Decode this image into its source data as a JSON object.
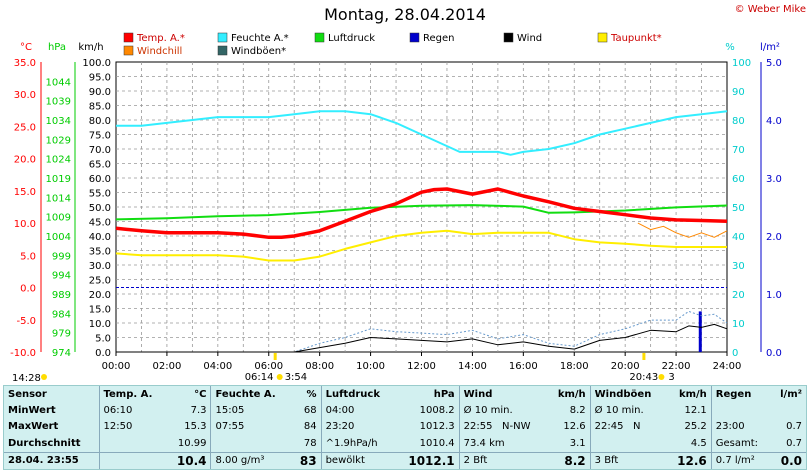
{
  "title": "Montag, 28.04.2014",
  "credit": "© Weber Mike",
  "chart_data": {
    "type": "line",
    "title": "Montag, 28.04.2014",
    "x_ticks": [
      "00:00",
      "02:00",
      "04:00",
      "06:00",
      "08:00",
      "10:00",
      "12:00",
      "14:00",
      "16:00",
      "18:00",
      "20:00",
      "22:00",
      "24:00"
    ],
    "axes": {
      "temp": {
        "unit": "°C",
        "min": -10,
        "max": 35,
        "ticks": [
          "35.0",
          "30.0",
          "25.0",
          "20.0",
          "15.0",
          "10.0",
          "5.0",
          "0.0",
          "-5.0",
          "-10.0"
        ],
        "color": "#ff0000"
      },
      "pressure": {
        "unit": "hPa",
        "min": 974,
        "max": 1049,
        "ticks": [
          "1044",
          "1039",
          "1034",
          "1029",
          "1024",
          "1019",
          "1014",
          "1009",
          "1004",
          "999",
          "994",
          "989",
          "984",
          "979",
          "974"
        ],
        "color": "#00cc00"
      },
      "wind": {
        "unit": "km/h",
        "min": 0,
        "max": 100,
        "ticks": [
          "100.0",
          "95.0",
          "90.0",
          "85.0",
          "80.0",
          "75.0",
          "70.0",
          "65.0",
          "60.0",
          "55.0",
          "50.0",
          "45.0",
          "40.0",
          "35.0",
          "30.0",
          "25.0",
          "20.0",
          "15.0",
          "10.0",
          "5.0",
          "0.0"
        ],
        "color": "#000000"
      },
      "humidity": {
        "unit": "%",
        "min": 0,
        "max": 100,
        "ticks": [
          "100",
          "90",
          "80",
          "70",
          "60",
          "50",
          "40",
          "30",
          "20",
          "10",
          "0"
        ],
        "color": "#00cccc"
      },
      "rain": {
        "unit": "l/m²",
        "min": 0,
        "max": 5,
        "ticks": [
          "5.0",
          "4.0",
          "3.0",
          "2.0",
          "1.0",
          "0.0"
        ],
        "color": "#0000cc"
      }
    },
    "legend": [
      {
        "label": "Temp. A.*",
        "color": "#ff0000"
      },
      {
        "label": "Feuchte A.*",
        "color": "#33eeff"
      },
      {
        "label": "Luftdruck",
        "color": "#11dd11"
      },
      {
        "label": "Regen",
        "color": "#0000cc"
      },
      {
        "label": "Wind",
        "color": "#000000"
      },
      {
        "label": "Taupunkt*",
        "color": "#ffee00"
      },
      {
        "label": "Windchill",
        "color": "#ff8800"
      },
      {
        "label": "Windböen*",
        "color": "#336666"
      }
    ],
    "series": [
      {
        "name": "Temp. A.",
        "axis": "temp",
        "color": "#ff0000",
        "width": 3.5,
        "x": [
          0,
          1,
          2,
          3,
          4,
          5,
          6,
          6.5,
          7,
          8,
          9,
          10,
          11,
          12,
          12.5,
          13,
          14,
          15,
          16,
          17,
          18,
          19,
          20,
          21,
          22,
          23,
          24
        ],
        "values": [
          9.2,
          8.8,
          8.5,
          8.5,
          8.5,
          8.3,
          7.8,
          7.8,
          8.0,
          8.8,
          10.3,
          11.8,
          13.0,
          14.8,
          15.2,
          15.3,
          14.5,
          15.3,
          14.2,
          13.3,
          12.3,
          11.8,
          11.3,
          10.8,
          10.5,
          10.4,
          10.3
        ]
      },
      {
        "name": "Feuchte A.",
        "axis": "humidity",
        "color": "#33eeff",
        "width": 2,
        "x": [
          0,
          1,
          2,
          3,
          4,
          5,
          6,
          7,
          8,
          9,
          10,
          11,
          12,
          13,
          13.5,
          14,
          15,
          15.5,
          16,
          17,
          18,
          19,
          20,
          21,
          22,
          23,
          24
        ],
        "values": [
          78,
          78,
          79,
          80,
          81,
          81,
          81,
          82,
          83,
          83,
          82,
          79,
          75,
          71,
          69,
          69,
          69,
          68,
          69,
          70,
          72,
          75,
          77,
          79,
          81,
          82,
          83
        ]
      },
      {
        "name": "Luftdruck",
        "axis": "pressure",
        "color": "#11dd11",
        "width": 2,
        "x": [
          0,
          2,
          4,
          6,
          8,
          10,
          12,
          14,
          16,
          17,
          18,
          20,
          22,
          24
        ],
        "values": [
          1008.3,
          1008.6,
          1009.1,
          1009.4,
          1010.2,
          1011.3,
          1011.8,
          1012.0,
          1011.6,
          1010.0,
          1010.1,
          1010.6,
          1011.4,
          1011.9
        ]
      },
      {
        "name": "Taupunkt",
        "axis": "temp",
        "color": "#ffee00",
        "width": 2,
        "x": [
          0,
          1,
          2,
          3,
          4,
          5,
          6,
          7,
          8,
          9,
          10,
          11,
          12,
          13,
          14,
          15,
          16,
          17,
          18,
          19,
          20,
          21,
          22,
          23,
          24
        ],
        "values": [
          5.3,
          5.0,
          5.0,
          5.0,
          5.0,
          4.8,
          4.2,
          4.2,
          4.8,
          6.0,
          7.0,
          8.0,
          8.5,
          8.8,
          8.3,
          8.5,
          8.5,
          8.5,
          7.5,
          7.0,
          6.8,
          6.5,
          6.3,
          6.3,
          6.3
        ]
      },
      {
        "name": "Windchill",
        "axis": "temp",
        "color": "#ff8800",
        "width": 1,
        "x": [
          20.5,
          21,
          21.5,
          22,
          22.5,
          23,
          23.5,
          24
        ],
        "values": [
          10.0,
          9.0,
          9.5,
          8.5,
          7.8,
          8.5,
          7.8,
          8.8
        ]
      },
      {
        "name": "Wind",
        "axis": "wind",
        "color": "#000000",
        "width": 1,
        "x": [
          0,
          7,
          8,
          9,
          10,
          11,
          12,
          13,
          14,
          15,
          16,
          17,
          18,
          19,
          20,
          21,
          22,
          22.5,
          23,
          23.5,
          24
        ],
        "values": [
          0,
          0,
          1.5,
          3,
          5,
          4.5,
          4,
          3.5,
          4.5,
          2.5,
          3.5,
          2,
          1,
          4,
          5,
          7.5,
          7,
          9,
          8.5,
          9.5,
          8
        ]
      },
      {
        "name": "Windböen",
        "axis": "wind",
        "color": "#6699cc",
        "width": 1,
        "dashed": true,
        "x": [
          0,
          7,
          8,
          9,
          10,
          11,
          12,
          13,
          14,
          15,
          16,
          17,
          18,
          19,
          20,
          21,
          22,
          22.5,
          23,
          23.5,
          24
        ],
        "values": [
          0,
          0,
          3,
          5,
          8,
          7,
          6.5,
          6,
          7.5,
          4.5,
          6,
          3,
          2,
          6,
          8,
          11,
          11,
          14,
          12.5,
          13,
          10
        ]
      }
    ],
    "rain": {
      "x": [
        22.95
      ],
      "values": [
        0.7
      ]
    },
    "limits": {
      "temp_line": 0.0
    },
    "markers": {
      "sunrise": "06:14",
      "sunset": "20:43",
      "moon_left": "3:54",
      "moon_right": "3",
      "current_time": "14:28"
    }
  },
  "stats": {
    "headers": {
      "sensor": "Sensor",
      "temp": "Temp. A.",
      "temp_unit": "°C",
      "hum": "Feuchte A.",
      "hum_unit": "%",
      "press": "Luftdruck",
      "press_unit": "hPa",
      "wind": "Wind",
      "wind_unit": "km/h",
      "gust": "Windböen",
      "gust_unit": "km/h",
      "rain": "Regen",
      "rain_unit": "l/m²"
    },
    "min": {
      "label": "MinWert",
      "temp_t": "06:10",
      "temp_v": "7.3",
      "hum_t": "15:05",
      "hum_v": "68",
      "press_t": "04:00",
      "press_v": "1008.2",
      "wind_t": "Ø 10 min.",
      "wind_v": "8.2",
      "gust_t": "Ø 10 min.",
      "gust_v": "12.1",
      "rain_t": "",
      "rain_v": ""
    },
    "max": {
      "label": "MaxWert",
      "temp_t": "12:50",
      "temp_v": "15.3",
      "hum_t": "07:55",
      "hum_v": "84",
      "press_t": "23:20",
      "press_v": "1012.3",
      "wind_t": "22:55",
      "wind_d": "N-NW",
      "wind_v": "12.6",
      "gust_t": "22:45",
      "gust_d": "N",
      "gust_v": "25.2",
      "rain_t": "23:00",
      "rain_v": "0.7"
    },
    "avg": {
      "label": "Durchschnitt",
      "temp_v": "10.99",
      "hum_v": "78",
      "press_t": "^1.9hPa/h",
      "press_v": "1010.4",
      "wind_t": "73.4 km",
      "wind_v": "3.1",
      "gust_v": "4.5",
      "rain_t": "Gesamt:",
      "rain_v": "0.7"
    },
    "current": {
      "label": "28.04. 23:55",
      "temp_v": "10.4",
      "hum_t": "8.00 g/m³",
      "hum_v": "83",
      "press_t": "bewölkt",
      "press_v": "1012.1",
      "wind_t": "2 Bft",
      "wind_v": "8.2",
      "gust_t": "3 Bft",
      "gust_v": "12.6",
      "rain_t": "0.7 l/m²",
      "rain_v": "0.0"
    }
  }
}
